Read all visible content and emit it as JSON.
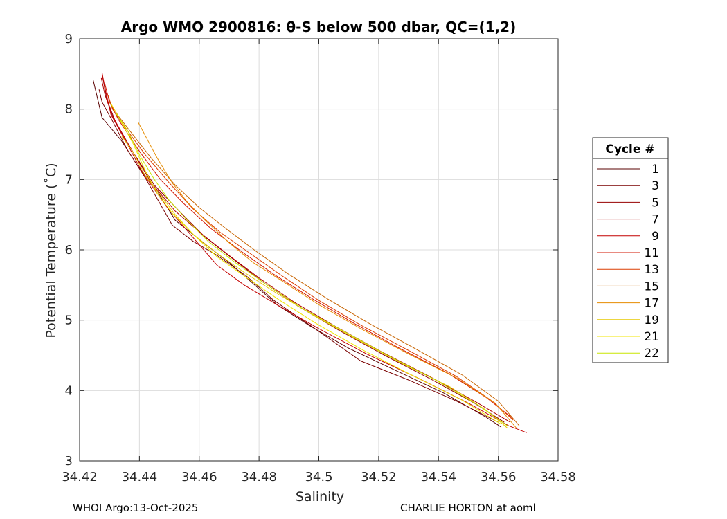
{
  "chart_data": {
    "type": "line",
    "title": "Argo WMO 2900816: θ-S below 500 dbar,  QC=(1,2)",
    "xlabel": "Salinity",
    "ylabel": "Potential Temperature (˚C)",
    "xlim": [
      34.42,
      34.58
    ],
    "ylim": [
      3,
      9
    ],
    "xticks": [
      "34.42",
      "34.44",
      "34.46",
      "34.48",
      "34.5",
      "34.52",
      "34.54",
      "34.56",
      "34.58"
    ],
    "yticks": [
      "3",
      "4",
      "5",
      "6",
      "7",
      "8",
      "9"
    ],
    "grid": true,
    "legend_title": "Cycle #",
    "legend_position": "outside-right",
    "series": [
      {
        "name": "1",
        "color": "#5a0000",
        "x": [
          34.4245,
          34.4275,
          34.434,
          34.439,
          34.446,
          34.452,
          34.462,
          34.47,
          34.478,
          34.486,
          34.497,
          34.51,
          34.526,
          34.542,
          34.556,
          34.561
        ],
        "y": [
          8.42,
          7.88,
          7.55,
          7.22,
          6.83,
          6.42,
          6.08,
          5.82,
          5.52,
          5.22,
          4.92,
          4.6,
          4.28,
          3.96,
          3.62,
          3.48
        ]
      },
      {
        "name": "3",
        "color": "#7a0000",
        "x": [
          34.4265,
          34.4275,
          34.431,
          34.436,
          34.442,
          34.451,
          34.458,
          34.466,
          34.476,
          34.485,
          34.498,
          34.514,
          34.53,
          34.546,
          34.56
        ],
        "y": [
          8.28,
          8.1,
          7.83,
          7.42,
          7.02,
          6.35,
          6.12,
          5.92,
          5.62,
          5.28,
          4.9,
          4.42,
          4.15,
          3.85,
          3.55
        ]
      },
      {
        "name": "5",
        "color": "#960000",
        "x": [
          34.4275,
          34.429,
          34.432,
          34.438,
          34.445,
          34.454,
          34.462,
          34.471,
          34.481,
          34.493,
          34.507,
          34.522,
          34.538,
          34.552,
          34.562
        ],
        "y": [
          8.5,
          8.15,
          7.82,
          7.38,
          6.92,
          6.52,
          6.18,
          5.88,
          5.55,
          5.2,
          4.85,
          4.5,
          4.15,
          3.82,
          3.55
        ]
      },
      {
        "name": "7",
        "color": "#b00000",
        "x": [
          34.4272,
          34.4285,
          34.431,
          34.437,
          34.444,
          34.452,
          34.461,
          34.47,
          34.48,
          34.492,
          34.506,
          34.521,
          34.537,
          34.552,
          34.564
        ],
        "y": [
          8.45,
          8.2,
          7.9,
          7.45,
          6.95,
          6.55,
          6.22,
          5.92,
          5.6,
          5.25,
          4.9,
          4.55,
          4.2,
          3.85,
          3.55
        ]
      },
      {
        "name": "9",
        "color": "#c40000",
        "x": [
          34.4275,
          34.4285,
          34.4305,
          34.436,
          34.441,
          34.449,
          34.457,
          34.466,
          34.475,
          34.486,
          34.5,
          34.516,
          34.533,
          34.55,
          34.5635,
          34.5695
        ],
        "y": [
          8.52,
          8.3,
          7.92,
          7.5,
          7.1,
          6.62,
          6.22,
          5.78,
          5.5,
          5.22,
          4.88,
          4.52,
          4.18,
          3.82,
          3.5,
          3.4
        ]
      },
      {
        "name": "11",
        "color": "#d21400",
        "x": [
          34.4285,
          34.43,
          34.433,
          34.44,
          34.447,
          34.455,
          34.464,
          34.474,
          34.485,
          34.498,
          34.512,
          34.527,
          34.543,
          34.556,
          34.565
        ],
        "y": [
          8.35,
          8.1,
          7.85,
          7.4,
          7.0,
          6.65,
          6.3,
          5.98,
          5.65,
          5.3,
          4.95,
          4.6,
          4.25,
          3.9,
          3.6
        ]
      },
      {
        "name": "13",
        "color": "#dc3c00",
        "x": [
          34.4295,
          34.431,
          34.435,
          34.442,
          34.45,
          34.458,
          34.467,
          34.477,
          34.488,
          34.5,
          34.514,
          34.53,
          34.546,
          34.558,
          34.565
        ],
        "y": [
          8.2,
          8.0,
          7.75,
          7.35,
          6.95,
          6.58,
          6.25,
          5.95,
          5.62,
          5.28,
          4.93,
          4.57,
          4.2,
          3.85,
          3.58
        ]
      },
      {
        "name": "15",
        "color": "#c86400",
        "x": [
          34.43,
          34.433,
          34.437,
          34.444,
          34.452,
          34.46,
          34.469,
          34.479,
          34.49,
          34.503,
          34.517,
          34.532,
          34.548,
          34.56,
          34.567
        ],
        "y": [
          8.1,
          7.9,
          7.68,
          7.3,
          6.92,
          6.6,
          6.3,
          5.98,
          5.65,
          5.3,
          4.95,
          4.6,
          4.22,
          3.85,
          3.5
        ]
      },
      {
        "name": "17",
        "color": "#e68c00",
        "x": [
          34.4395,
          34.442,
          34.446,
          34.451,
          34.456,
          34.462,
          34.47,
          34.478,
          34.488,
          34.5,
          34.514,
          34.53,
          34.546,
          34.559,
          34.566
        ],
        "y": [
          7.82,
          7.62,
          7.3,
          6.95,
          6.68,
          6.42,
          6.1,
          5.82,
          5.55,
          5.22,
          4.88,
          4.52,
          4.18,
          3.82,
          3.47
        ]
      },
      {
        "name": "19",
        "color": "#e6c800",
        "x": [
          34.434,
          34.438,
          34.442,
          34.447,
          34.452,
          34.458,
          34.466,
          34.475,
          34.486,
          34.499,
          34.513,
          34.528,
          34.544,
          34.556,
          34.563
        ],
        "y": [
          7.62,
          7.38,
          7.05,
          6.78,
          6.5,
          6.22,
          5.95,
          5.68,
          5.38,
          5.05,
          4.72,
          4.38,
          4.05,
          3.72,
          3.47
        ]
      },
      {
        "name": "21",
        "color": "#f0e600",
        "x": [
          34.4305,
          34.4335,
          34.438,
          34.442,
          34.446,
          34.451,
          34.458,
          34.466,
          34.476,
          34.487,
          34.5,
          34.515,
          34.531,
          34.548,
          34.561
        ],
        "y": [
          8.08,
          7.85,
          7.5,
          7.12,
          6.8,
          6.52,
          6.22,
          5.9,
          5.6,
          5.28,
          4.93,
          4.57,
          4.22,
          3.86,
          3.52
        ]
      },
      {
        "name": "22",
        "color": "#c8e600",
        "x": [
          34.432,
          34.436,
          34.44,
          34.445,
          34.45,
          34.456,
          34.463,
          34.472,
          34.482,
          34.494,
          34.508,
          34.523,
          34.539,
          34.553,
          34.563
        ],
        "y": [
          7.95,
          7.7,
          7.35,
          7.0,
          6.7,
          6.42,
          6.12,
          5.82,
          5.52,
          5.18,
          4.85,
          4.5,
          4.15,
          3.8,
          3.5
        ]
      }
    ]
  },
  "footer": {
    "left": "WHOI Argo:13-Oct-2025",
    "right": "CHARLIE HORTON at aoml"
  }
}
